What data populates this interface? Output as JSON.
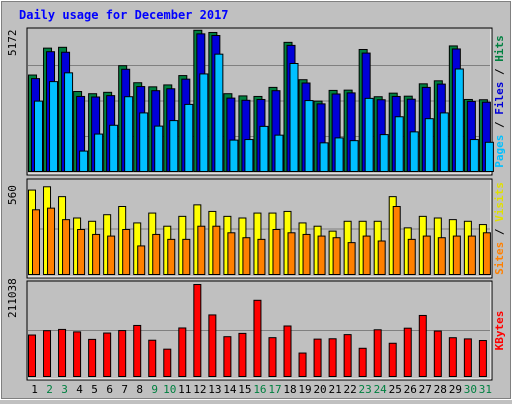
{
  "chart_data": {
    "type": "bar",
    "title": "Daily usage for December 2017",
    "categories": [
      "1",
      "2",
      "3",
      "4",
      "5",
      "6",
      "7",
      "8",
      "9",
      "10",
      "11",
      "12",
      "13",
      "14",
      "15",
      "16",
      "17",
      "18",
      "19",
      "20",
      "21",
      "22",
      "23",
      "24",
      "25",
      "26",
      "27",
      "28",
      "29",
      "30",
      "31"
    ],
    "weekend_days": [
      "2",
      "3",
      "9",
      "10",
      "16",
      "17",
      "23",
      "24",
      "30",
      "31"
    ],
    "panels": [
      {
        "id": "pages-files-hits",
        "max_label": "5172",
        "ylim": [
          0,
          5172
        ],
        "series": [
          {
            "name": "Hits",
            "color": "#008040",
            "values": [
              3550,
              4530,
              4560,
              2950,
              2870,
              2920,
              3890,
              3270,
              3120,
              3190,
              3530,
              5180,
              5100,
              2870,
              2790,
              2770,
              3100,
              4740,
              3380,
              2600,
              2990,
              3000,
              4480,
              2760,
              2890,
              2780,
              3230,
              3340,
              4610,
              2660,
              2650
            ]
          },
          {
            "name": "Files",
            "color": "#0000d8",
            "values": [
              3420,
              4400,
              4380,
              2770,
              2750,
              2800,
              3760,
              3130,
              2980,
              3050,
              3400,
              5050,
              4990,
              2710,
              2630,
              2660,
              2980,
              4630,
              3260,
              2500,
              2860,
              2900,
              4350,
              2650,
              2770,
              2670,
              3100,
              3220,
              4500,
              2590,
              2560
            ]
          },
          {
            "name": "Pages",
            "color": "#00c0ff",
            "values": [
              2600,
              3310,
              3630,
              780,
              1400,
              1720,
              2760,
              2170,
              1690,
              1890,
              2480,
              3590,
              4310,
              1180,
              1200,
              1680,
              1360,
              3970,
              2620,
              1080,
              1260,
              1160,
              2700,
              1380,
              2030,
              1480,
              1960,
              2170,
              3770,
              1200,
              1100
            ]
          }
        ]
      },
      {
        "id": "sites-visits",
        "max_label": "560",
        "ylim": [
          0,
          560
        ],
        "series": [
          {
            "name": "Visits",
            "color": "#ffff00",
            "values": [
              520,
              540,
              480,
              350,
              330,
              370,
              420,
              320,
              380,
              300,
              360,
              430,
              390,
              360,
              350,
              380,
              380,
              390,
              320,
              300,
              270,
              330,
              330,
              330,
              480,
              290,
              360,
              350,
              340,
              330,
              310
            ]
          },
          {
            "name": "Sites",
            "color": "#ff8000",
            "values": [
              400,
              410,
              340,
              280,
              250,
              240,
              280,
              180,
              250,
              220,
              220,
              300,
              300,
              260,
              230,
              220,
              280,
              260,
              250,
              240,
              230,
              200,
              240,
              210,
              420,
              220,
              240,
              230,
              240,
              240,
              260
            ]
          }
        ]
      },
      {
        "id": "kbytes",
        "max_label": "211038",
        "ylim": [
          0,
          211038
        ],
        "series": [
          {
            "name": "KBytes",
            "color": "#ff0000",
            "values": [
              96400,
              106200,
              109100,
              103500,
              86500,
              100900,
              106500,
              118100,
              84600,
              64300,
              112400,
              211000,
              142000,
              92600,
              100100,
              175200,
              90400,
              116900,
              55500,
              87100,
              87900,
              97300,
              66300,
              108300,
              77700,
              111900,
              140800,
              105400,
              90300,
              87600,
              83900
            ]
          }
        ]
      }
    ],
    "right_labels": [
      [
        {
          "text": "Pages",
          "color": "#00c0ff"
        },
        {
          "text": " / ",
          "color": "#000000"
        },
        {
          "text": "Files",
          "color": "#0000d8"
        },
        {
          "text": " / ",
          "color": "#000000"
        },
        {
          "text": "Hits",
          "color": "#008040"
        }
      ],
      [
        {
          "text": "Sites",
          "color": "#ff8000"
        },
        {
          "text": " / ",
          "color": "#000000"
        },
        {
          "text": "Visits",
          "color": "#e0e000"
        }
      ],
      [
        {
          "text": "KBytes",
          "color": "#ff0000"
        }
      ]
    ],
    "colors": {
      "background": "#c0c0c0",
      "title": "#0000ff",
      "weekday_label": "#000000",
      "weekend_label": "#008040",
      "grid": "#808080"
    }
  }
}
